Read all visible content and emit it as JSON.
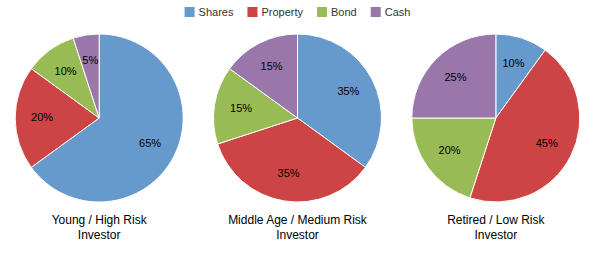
{
  "chart_data": [
    {
      "type": "pie",
      "title": "Young / High Risk\nInvestor",
      "categories": [
        "Shares",
        "Property",
        "Bond",
        "Cash"
      ],
      "values": [
        65,
        20,
        10,
        5
      ],
      "value_labels": [
        "65%",
        "20%",
        "10%",
        "5%"
      ],
      "colors": [
        "#6699CC",
        "#CC4444",
        "#99BB55",
        "#9977AA"
      ],
      "data_labels": true,
      "legend": "top"
    },
    {
      "type": "pie",
      "title": "Middle Age / Medium Risk\nInvestor",
      "categories": [
        "Shares",
        "Property",
        "Bond",
        "Cash"
      ],
      "values": [
        35,
        35,
        15,
        15
      ],
      "value_labels": [
        "35%",
        "35%",
        "15%",
        "15%"
      ],
      "colors": [
        "#6699CC",
        "#CC4444",
        "#99BB55",
        "#9977AA"
      ],
      "data_labels": true,
      "legend": "top"
    },
    {
      "type": "pie",
      "title": "Retired / Low Risk\nInvestor",
      "categories": [
        "Shares",
        "Property",
        "Bond",
        "Cash"
      ],
      "values": [
        10,
        45,
        20,
        25
      ],
      "value_labels": [
        "10%",
        "45%",
        "20%",
        "25%"
      ],
      "colors": [
        "#6699CC",
        "#CC4444",
        "#99BB55",
        "#9977AA"
      ],
      "data_labels": true,
      "legend": "top"
    }
  ]
}
